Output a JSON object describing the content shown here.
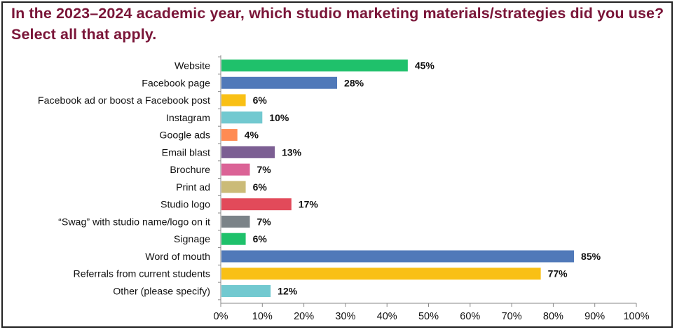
{
  "title_line1": "In the 2023–2024 academic year, which studio marketing materials/strategies did you use?",
  "title_line2": "Select all that apply.",
  "chart_data": {
    "type": "bar",
    "orientation": "horizontal",
    "title": "In the 2023–2024 academic year, which studio marketing materials/strategies did you use? Select all that apply.",
    "xlabel": "",
    "ylabel": "",
    "xlim": [
      0,
      100
    ],
    "ticks": [
      0,
      10,
      20,
      30,
      40,
      50,
      60,
      70,
      80,
      90,
      100
    ],
    "tick_suffix": "%",
    "grid": false,
    "categories": [
      "Website",
      "Facebook page",
      "Facebook ad or boost a Facebook post",
      "Instagram",
      "Google ads",
      "Email blast",
      "Brochure",
      "Print ad",
      "Studio logo",
      "“Swag” with studio name/logo on it",
      "Signage",
      "Word of mouth",
      "Referrals from current students",
      "Other (please specify)"
    ],
    "values": [
      45,
      28,
      6,
      10,
      4,
      13,
      7,
      6,
      17,
      7,
      6,
      85,
      77,
      12
    ],
    "value_labels": [
      "45%",
      "28%",
      "6%",
      "10%",
      "4%",
      "13%",
      "7%",
      "6%",
      "17%",
      "7%",
      "6%",
      "85%",
      "77%",
      "12%"
    ],
    "colors": [
      "#1fc16b",
      "#5079b9",
      "#f9c015",
      "#72c9d0",
      "#ff8b53",
      "#7c5f93",
      "#db6396",
      "#cbbb78",
      "#e24a5a",
      "#7b8388",
      "#1fc16b",
      "#5079b9",
      "#f9c015",
      "#72c9d0"
    ]
  }
}
